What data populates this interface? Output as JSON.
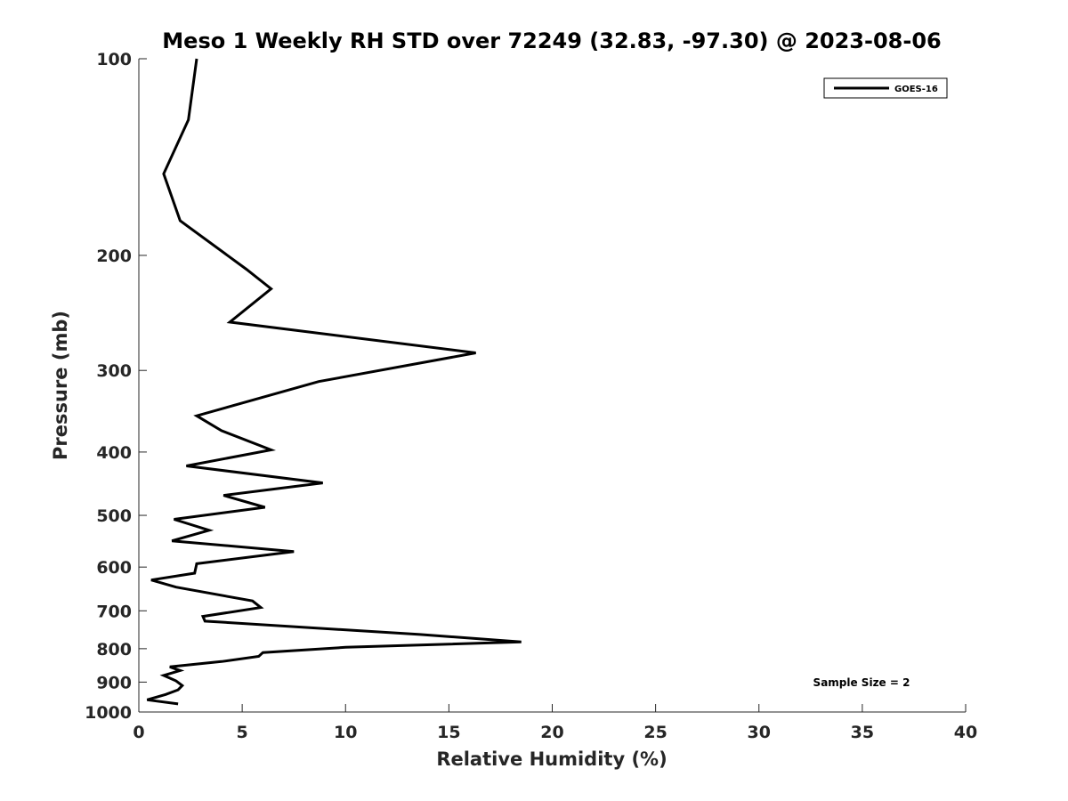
{
  "chart_data": {
    "type": "line",
    "title": "Meso 1 Weekly RH STD over 72249 (32.83, -97.30) @ 2023-08-06",
    "xlabel": "Relative Humidity (%)",
    "ylabel": "Pressure (mb)",
    "xlim": [
      0,
      40
    ],
    "ylim": [
      100,
      1000
    ],
    "y_scale": "log",
    "y_reversed": true,
    "grid": false,
    "x_ticks": [
      0,
      5,
      10,
      15,
      20,
      25,
      30,
      35,
      40
    ],
    "y_ticks": [
      100,
      200,
      300,
      400,
      500,
      600,
      700,
      800,
      900,
      1000
    ],
    "legend": {
      "position": "top-right",
      "entries": [
        "GOES-16"
      ]
    },
    "annotations": [
      "Sample Size = 2"
    ],
    "series": [
      {
        "name": "GOES-16",
        "color": "#000000",
        "points": [
          [
            2.8,
            100
          ],
          [
            2.4,
            124
          ],
          [
            1.2,
            150
          ],
          [
            2.0,
            177
          ],
          [
            5.2,
            210
          ],
          [
            6.4,
            225
          ],
          [
            4.4,
            253
          ],
          [
            16.3,
            282
          ],
          [
            8.7,
            312
          ],
          [
            2.8,
            352
          ],
          [
            4.0,
            371
          ],
          [
            6.4,
            397
          ],
          [
            2.3,
            420
          ],
          [
            8.9,
            446
          ],
          [
            4.1,
            466
          ],
          [
            6.1,
            486
          ],
          [
            1.7,
            507
          ],
          [
            3.4,
            527
          ],
          [
            1.6,
            547
          ],
          [
            7.5,
            568
          ],
          [
            2.8,
            593
          ],
          [
            2.7,
            613
          ],
          [
            0.6,
            628
          ],
          [
            1.8,
            644
          ],
          [
            5.5,
            676
          ],
          [
            5.9,
            692
          ],
          [
            3.1,
            714
          ],
          [
            3.2,
            726
          ],
          [
            13.6,
            761
          ],
          [
            18.5,
            781
          ],
          [
            10.0,
            796
          ],
          [
            6.0,
            811
          ],
          [
            5.8,
            822
          ],
          [
            4.0,
            837
          ],
          [
            1.5,
            853
          ],
          [
            2.0,
            864
          ],
          [
            1.2,
            879
          ],
          [
            1.8,
            896
          ],
          [
            2.1,
            911
          ],
          [
            1.9,
            925
          ],
          [
            1.3,
            940
          ],
          [
            0.4,
            958
          ],
          [
            1.9,
            972
          ]
        ]
      }
    ]
  }
}
